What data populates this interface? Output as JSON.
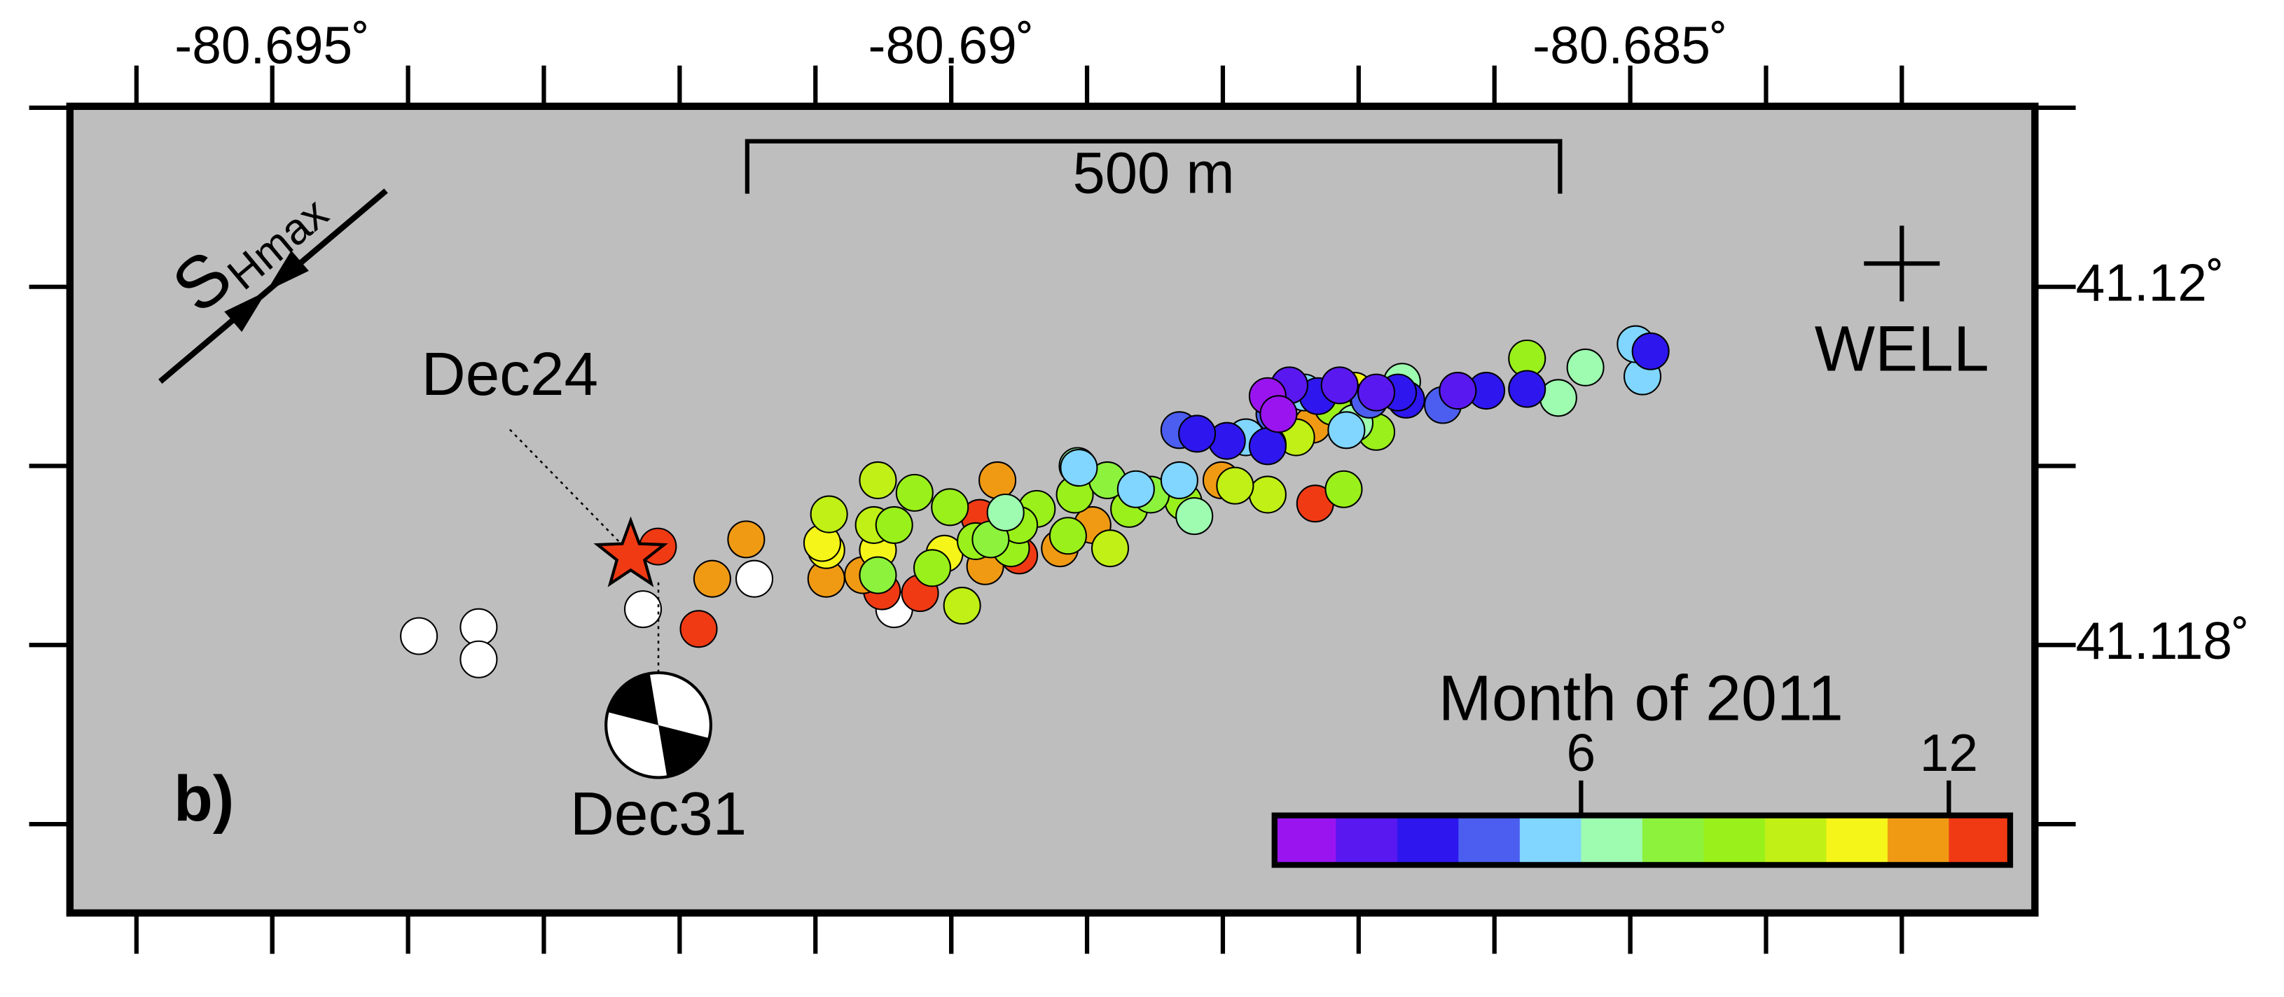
{
  "chart_data": {
    "type": "scatter",
    "panel_label": "b)",
    "xlim": [
      -80.69649,
      -80.68202
    ],
    "ylim": [
      41.116504,
      41.121008
    ],
    "xticks": [
      {
        "value": -80.695,
        "label": "-80.695˚"
      },
      {
        "value": -80.69,
        "label": "-80.69˚"
      },
      {
        "value": -80.685,
        "label": "-80.685˚"
      }
    ],
    "xminorticks": [
      -80.696,
      -80.695,
      -80.694,
      -80.693,
      -80.692,
      -80.691,
      -80.69,
      -80.689,
      -80.688,
      -80.687,
      -80.686,
      -80.685,
      -80.684,
      -80.683
    ],
    "yticks": [
      {
        "value": 41.12,
        "label": "41.12˚"
      },
      {
        "value": 41.118,
        "label": "41.118˚"
      }
    ],
    "yminorticks": [
      41.117,
      41.118,
      41.119,
      41.12,
      41.121
    ],
    "background": "#bebebe",
    "no_month_color": "#ffffff",
    "series": [
      {
        "x": [
          -80.69392,
          -80.69348,
          -80.69348,
          -80.69227,
          -80.69145,
          -80.69042,
          -80.69216,
          -80.69186,
          -80.68732,
          -80.69023,
          -80.69051,
          -80.68979,
          -80.6895,
          -80.69176,
          -80.69151,
          -80.69092,
          -80.69065,
          -80.68966,
          -80.68896,
          -80.68801,
          -80.68734,
          -80.6892,
          -80.68975,
          -80.69092,
          -80.69005,
          -80.68703,
          -80.69054,
          -80.69095,
          -80.6909,
          -80.69057,
          -80.68992,
          -80.68883,
          -80.68746,
          -80.68767,
          -80.68791,
          -80.69054,
          -80.69027,
          -80.69042,
          -80.69001,
          -80.68956,
          -80.68937,
          -80.68909,
          -80.68869,
          -80.68829,
          -80.68711,
          -80.68687,
          -80.68576,
          -80.69014,
          -80.68982,
          -80.6895,
          -80.68914,
          -80.68719,
          -80.69054,
          -80.68971,
          -80.68885,
          -80.68853,
          -80.68767,
          -80.68821,
          -80.68553,
          -80.68533,
          -80.68668,
          -80.68703,
          -80.68907,
          -80.6896,
          -80.68906,
          -80.68864,
          -80.68491,
          -80.68496,
          -80.6874,
          -80.68709,
          -80.68832,
          -80.68783,
          -80.68638,
          -80.68832,
          -80.68762,
          -80.68692,
          -80.68485,
          -80.68576,
          -80.68606,
          -80.68665,
          -80.68797,
          -80.68767,
          -80.68819,
          -80.68671,
          -80.6873,
          -80.68627,
          -80.68751,
          -80.68714,
          -80.68687,
          -80.68767,
          -80.68759
        ],
        "values": [
          41.11805,
          41.1181,
          41.11792,
          41.1182,
          41.11837,
          41.1182,
          41.11855,
          41.11809,
          41.11879,
          41.11829,
          41.1183,
          41.11871,
          41.1185,
          41.11837,
          41.11859,
          41.11837,
          41.11839,
          41.11892,
          41.11867,
          41.11892,
          41.11923,
          41.11854,
          41.11844,
          41.11853,
          41.11851,
          41.11942,
          41.11853,
          41.11857,
          41.11873,
          41.11867,
          41.11822,
          41.11854,
          41.11916,
          41.11884,
          41.11889,
          41.11892,
          41.11885,
          41.11867,
          41.11877,
          41.11854,
          41.11876,
          41.11884,
          41.11876,
          41.1188,
          41.11887,
          41.11919,
          41.1196,
          41.11843,
          41.11858,
          41.11867,
          41.11861,
          41.11933,
          41.11839,
          41.11859,
          41.11892,
          41.11884,
          41.11912,
          41.11872,
          41.11938,
          41.11955,
          41.11947,
          41.11924,
          41.119,
          41.11874,
          41.11899,
          41.11887,
          41.1195,
          41.11968,
          41.11941,
          41.1192,
          41.11892,
          41.11916,
          41.11934,
          41.1192,
          41.11929,
          41.11937,
          41.11964,
          41.11943,
          41.11942,
          41.11937,
          41.11914,
          41.11911,
          41.11918,
          41.11941,
          41.11939,
          41.11942,
          41.11945,
          41.11945,
          41.11941,
          41.11939,
          41.11929
        ],
        "months": [
          null,
          null,
          null,
          null,
          null,
          null,
          12,
          12,
          12,
          12,
          12,
          12,
          12,
          11,
          11,
          11,
          11,
          11,
          11,
          11,
          11,
          11,
          11,
          10,
          10,
          10,
          10,
          10,
          9,
          9,
          9,
          9,
          9,
          9,
          9,
          9,
          8,
          8,
          8,
          8,
          8,
          8,
          8,
          8,
          8,
          8,
          8,
          8,
          8,
          8,
          8,
          8,
          7,
          7,
          7,
          7,
          7,
          6,
          6,
          6,
          6,
          6,
          6,
          6,
          5,
          5,
          5,
          5,
          5,
          5,
          5,
          5,
          4,
          4,
          4,
          4,
          3,
          3,
          3,
          3,
          3,
          3,
          3,
          3,
          3,
          2,
          2,
          2,
          2,
          1,
          1
        ]
      }
    ],
    "colorbar": {
      "title": "Month of 2011",
      "clim": [
        1,
        13
      ],
      "ticks": [
        6,
        12
      ],
      "colors": [
        "#9a14f0",
        "#5a18f0",
        "#2d17ee",
        "#4b5ef0",
        "#80d6ff",
        "#9dfcb0",
        "#8cf23c",
        "#9af01a",
        "#c0f015",
        "#f5f51a",
        "#f09a14",
        "#f03a14"
      ]
    },
    "star": {
      "label": "Dec24",
      "x": -80.69236,
      "y": 41.1185,
      "color": "#f03a14"
    },
    "focal_mechanism_label": "Dec31",
    "well": {
      "label": "WELL",
      "x": -80.683,
      "y": 41.12013
    },
    "scale_bar_label": "500 m",
    "stress": {
      "symbol": "S",
      "subscript": "Hmax"
    }
  }
}
